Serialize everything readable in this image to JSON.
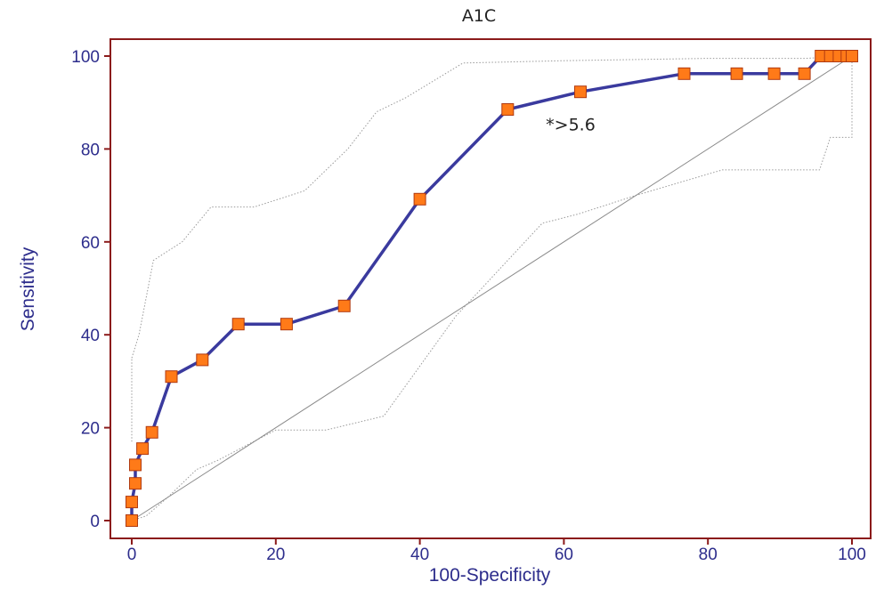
{
  "chart_data": {
    "type": "line",
    "title": "A1C",
    "xlabel": "100-Specificity",
    "ylabel": "Sensitivity",
    "xlim": [
      0,
      100
    ],
    "ylim": [
      0,
      100
    ],
    "xticks": [
      "0",
      "20",
      "40",
      "60",
      "80",
      "100"
    ],
    "yticks": [
      "0",
      "20",
      "40",
      "60",
      "80",
      "100"
    ],
    "grid": false,
    "annotation": {
      "text": "*>5.6",
      "x": 57.5,
      "y": 84
    },
    "colors": {
      "frame": "#8b1a1a",
      "roc_line": "#3a3a9e",
      "marker_fill": "#ff7a18",
      "marker_edge": "#b03a10",
      "ci_line": "#9a9a9a",
      "diagonal": "#8a8a8a"
    },
    "series": [
      {
        "values": [
          [
            0,
            0
          ],
          [
            0,
            4
          ],
          [
            0.5,
            8
          ],
          [
            0.5,
            12
          ],
          [
            1.5,
            15.5
          ],
          [
            2.8,
            19
          ],
          [
            5.5,
            31
          ],
          [
            9.8,
            34.6
          ],
          [
            14.8,
            42.3
          ],
          [
            21.5,
            42.3
          ],
          [
            29.5,
            46.2
          ],
          [
            40,
            69.2
          ],
          [
            52.2,
            88.5
          ],
          [
            62.3,
            92.3
          ],
          [
            76.7,
            96.2
          ],
          [
            84,
            96.2
          ],
          [
            89.2,
            96.2
          ],
          [
            93.4,
            96.2
          ],
          [
            95.7,
            100
          ],
          [
            97,
            100
          ],
          [
            98.2,
            100
          ],
          [
            99.3,
            100
          ],
          [
            100,
            100
          ]
        ]
      }
    ],
    "ci_upper": [
      [
        0,
        35
      ],
      [
        1,
        40
      ],
      [
        3,
        56
      ],
      [
        5,
        58
      ],
      [
        7,
        60
      ],
      [
        11,
        67.5
      ],
      [
        17,
        67.5
      ],
      [
        20,
        69
      ],
      [
        24,
        71
      ],
      [
        30,
        80
      ],
      [
        34,
        88
      ],
      [
        38,
        91
      ],
      [
        46,
        98.5
      ],
      [
        60,
        99
      ],
      [
        80,
        99.5
      ],
      [
        93.5,
        99.5
      ],
      [
        100,
        100
      ]
    ],
    "ci_lower": [
      [
        0,
        0
      ],
      [
        2,
        1
      ],
      [
        5,
        5
      ],
      [
        9,
        11
      ],
      [
        12,
        13
      ],
      [
        20,
        19.5
      ],
      [
        27,
        19.5
      ],
      [
        35,
        22.5
      ],
      [
        45,
        44
      ],
      [
        57,
        64
      ],
      [
        62,
        66
      ],
      [
        70,
        70
      ],
      [
        82,
        75.5
      ],
      [
        95.5,
        75.5
      ],
      [
        97,
        82.5
      ],
      [
        100,
        82.5
      ],
      [
        100,
        100
      ]
    ],
    "ci_left": [
      [
        0,
        17
      ],
      [
        0,
        35
      ]
    ]
  }
}
